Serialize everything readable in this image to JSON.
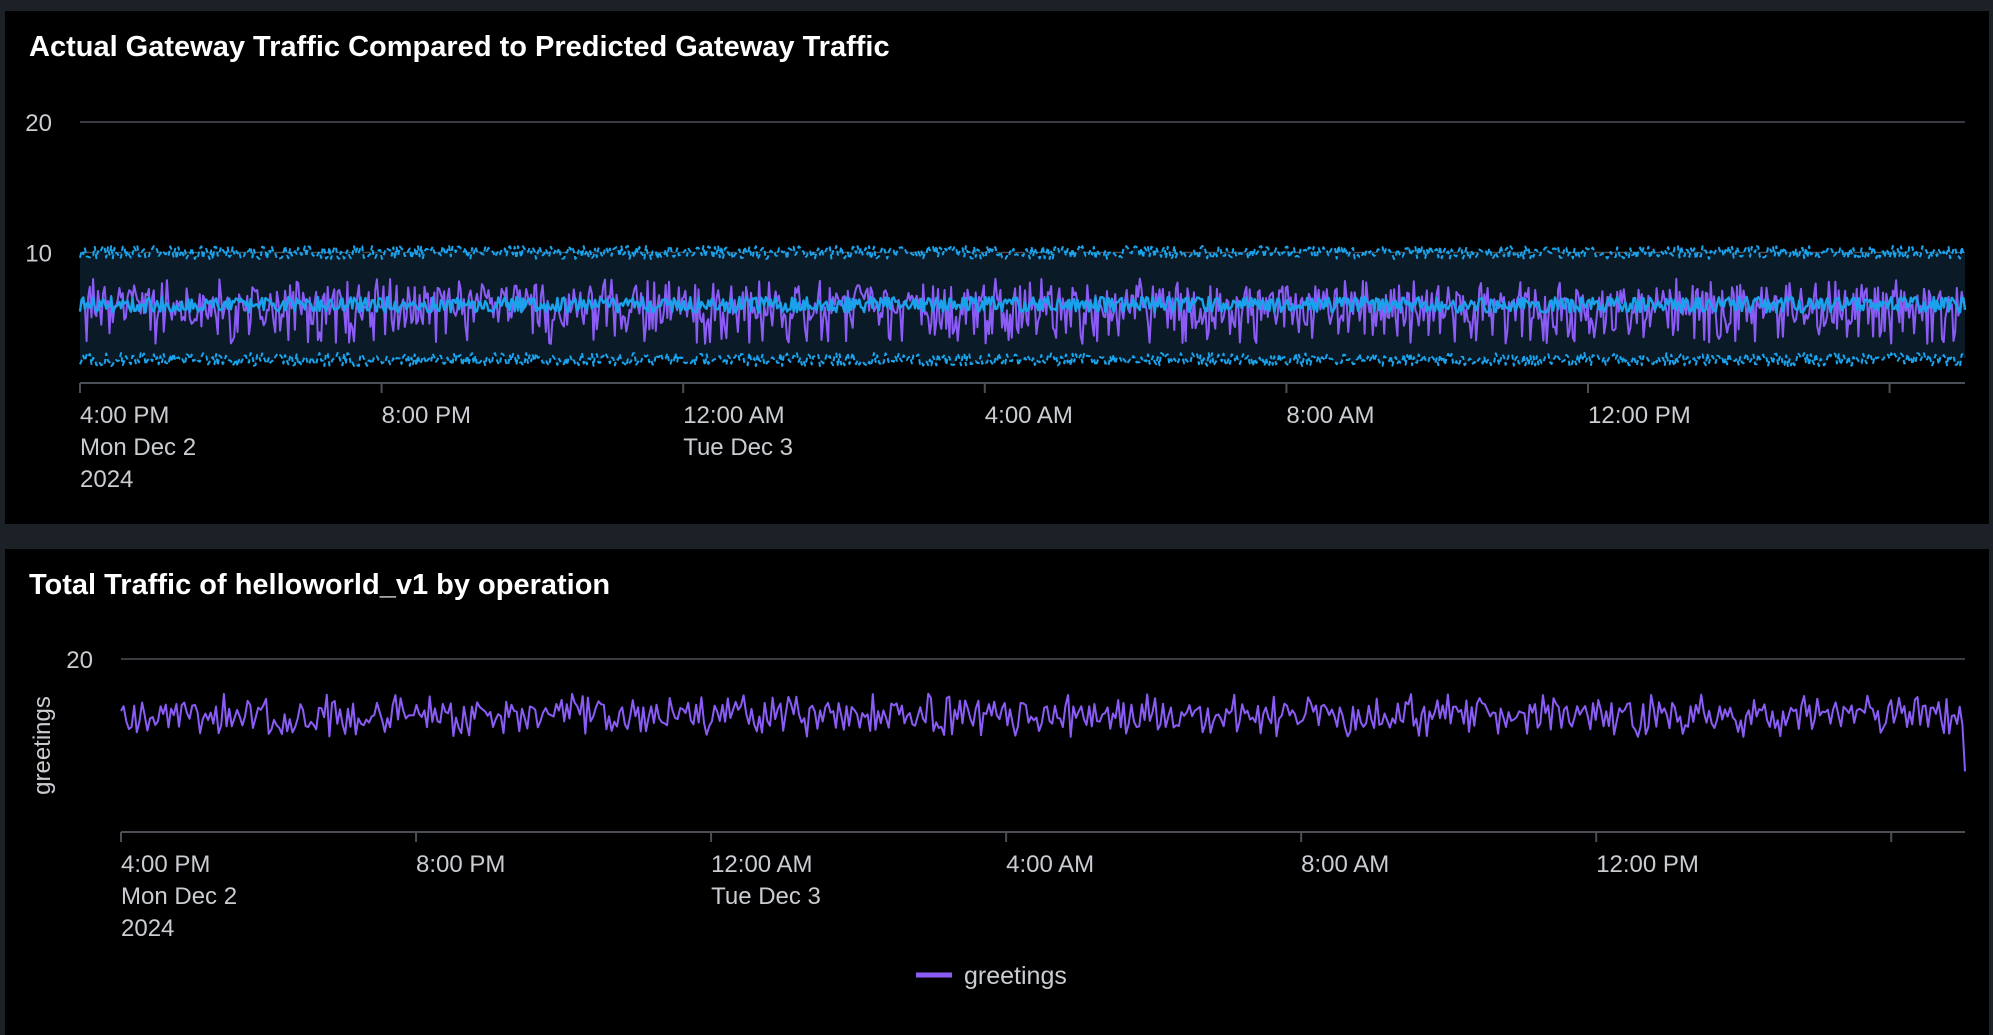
{
  "colors": {
    "page_bg": "#1c2127",
    "panel_bg": "#000000",
    "grid": "#4a4f55",
    "axis_text": "#c9ccd1",
    "title_text": "#ffffff",
    "actual": "#8a5cf5",
    "predicted": "#1aa3ec",
    "band_fill": "#0a1a26"
  },
  "chart_data": [
    {
      "type": "line",
      "title": "Actual Gateway Traffic Compared to Predicted Gateway Traffic",
      "ylabel": "",
      "ylim": [
        0,
        20
      ],
      "yticks": [
        "10",
        "20"
      ],
      "ytick_values": [
        10,
        20
      ],
      "x_range_hours": [
        0,
        25
      ],
      "xticks": [
        {
          "hour": 0,
          "lines": [
            "4:00 PM",
            "Mon Dec 2",
            "2024"
          ]
        },
        {
          "hour": 4,
          "lines": [
            "8:00 PM"
          ]
        },
        {
          "hour": 8,
          "lines": [
            "12:00 AM",
            "Tue Dec 3"
          ]
        },
        {
          "hour": 12,
          "lines": [
            "4:00 AM"
          ]
        },
        {
          "hour": 16,
          "lines": [
            "8:00 AM"
          ]
        },
        {
          "hour": 20,
          "lines": [
            "12:00 PM"
          ]
        },
        {
          "hour": 24,
          "lines": []
        }
      ],
      "series": [
        {
          "name": "actual",
          "role": "actual",
          "mean": 6.0,
          "min": 3.0,
          "max": 8.0,
          "points": 1150
        },
        {
          "name": "predicted",
          "role": "predicted",
          "mean": 6.0,
          "jitter": 0.6,
          "points": 1150
        },
        {
          "name": "upper bound",
          "role": "upper",
          "mean": 10.0,
          "jitter": 0.5,
          "points": 1150
        },
        {
          "name": "lower bound",
          "role": "lower",
          "mean": 1.8,
          "jitter": 0.5,
          "points": 1150
        }
      ]
    },
    {
      "type": "line",
      "title": "Total Traffic of helloworld_v1 by operation",
      "ylabel": "greetings",
      "ylim": [
        0,
        20
      ],
      "yticks": [
        "20"
      ],
      "ytick_values": [
        20
      ],
      "x_range_hours": [
        0,
        25
      ],
      "xticks": [
        {
          "hour": 0,
          "lines": [
            "4:00 PM",
            "Mon Dec 2",
            "2024"
          ]
        },
        {
          "hour": 4,
          "lines": [
            "8:00 PM"
          ]
        },
        {
          "hour": 8,
          "lines": [
            "12:00 AM",
            "Tue Dec 3"
          ]
        },
        {
          "hour": 12,
          "lines": [
            "4:00 AM"
          ]
        },
        {
          "hour": 16,
          "lines": [
            "8:00 AM"
          ]
        },
        {
          "hour": 20,
          "lines": [
            "12:00 PM"
          ]
        },
        {
          "hour": 24,
          "lines": []
        }
      ],
      "series": [
        {
          "name": "greetings",
          "mean": 13.5,
          "min": 11.0,
          "max": 16.0,
          "end_value": 7.0,
          "points": 700
        }
      ],
      "legend": {
        "label": "greetings",
        "position": "bottom-center"
      }
    }
  ]
}
